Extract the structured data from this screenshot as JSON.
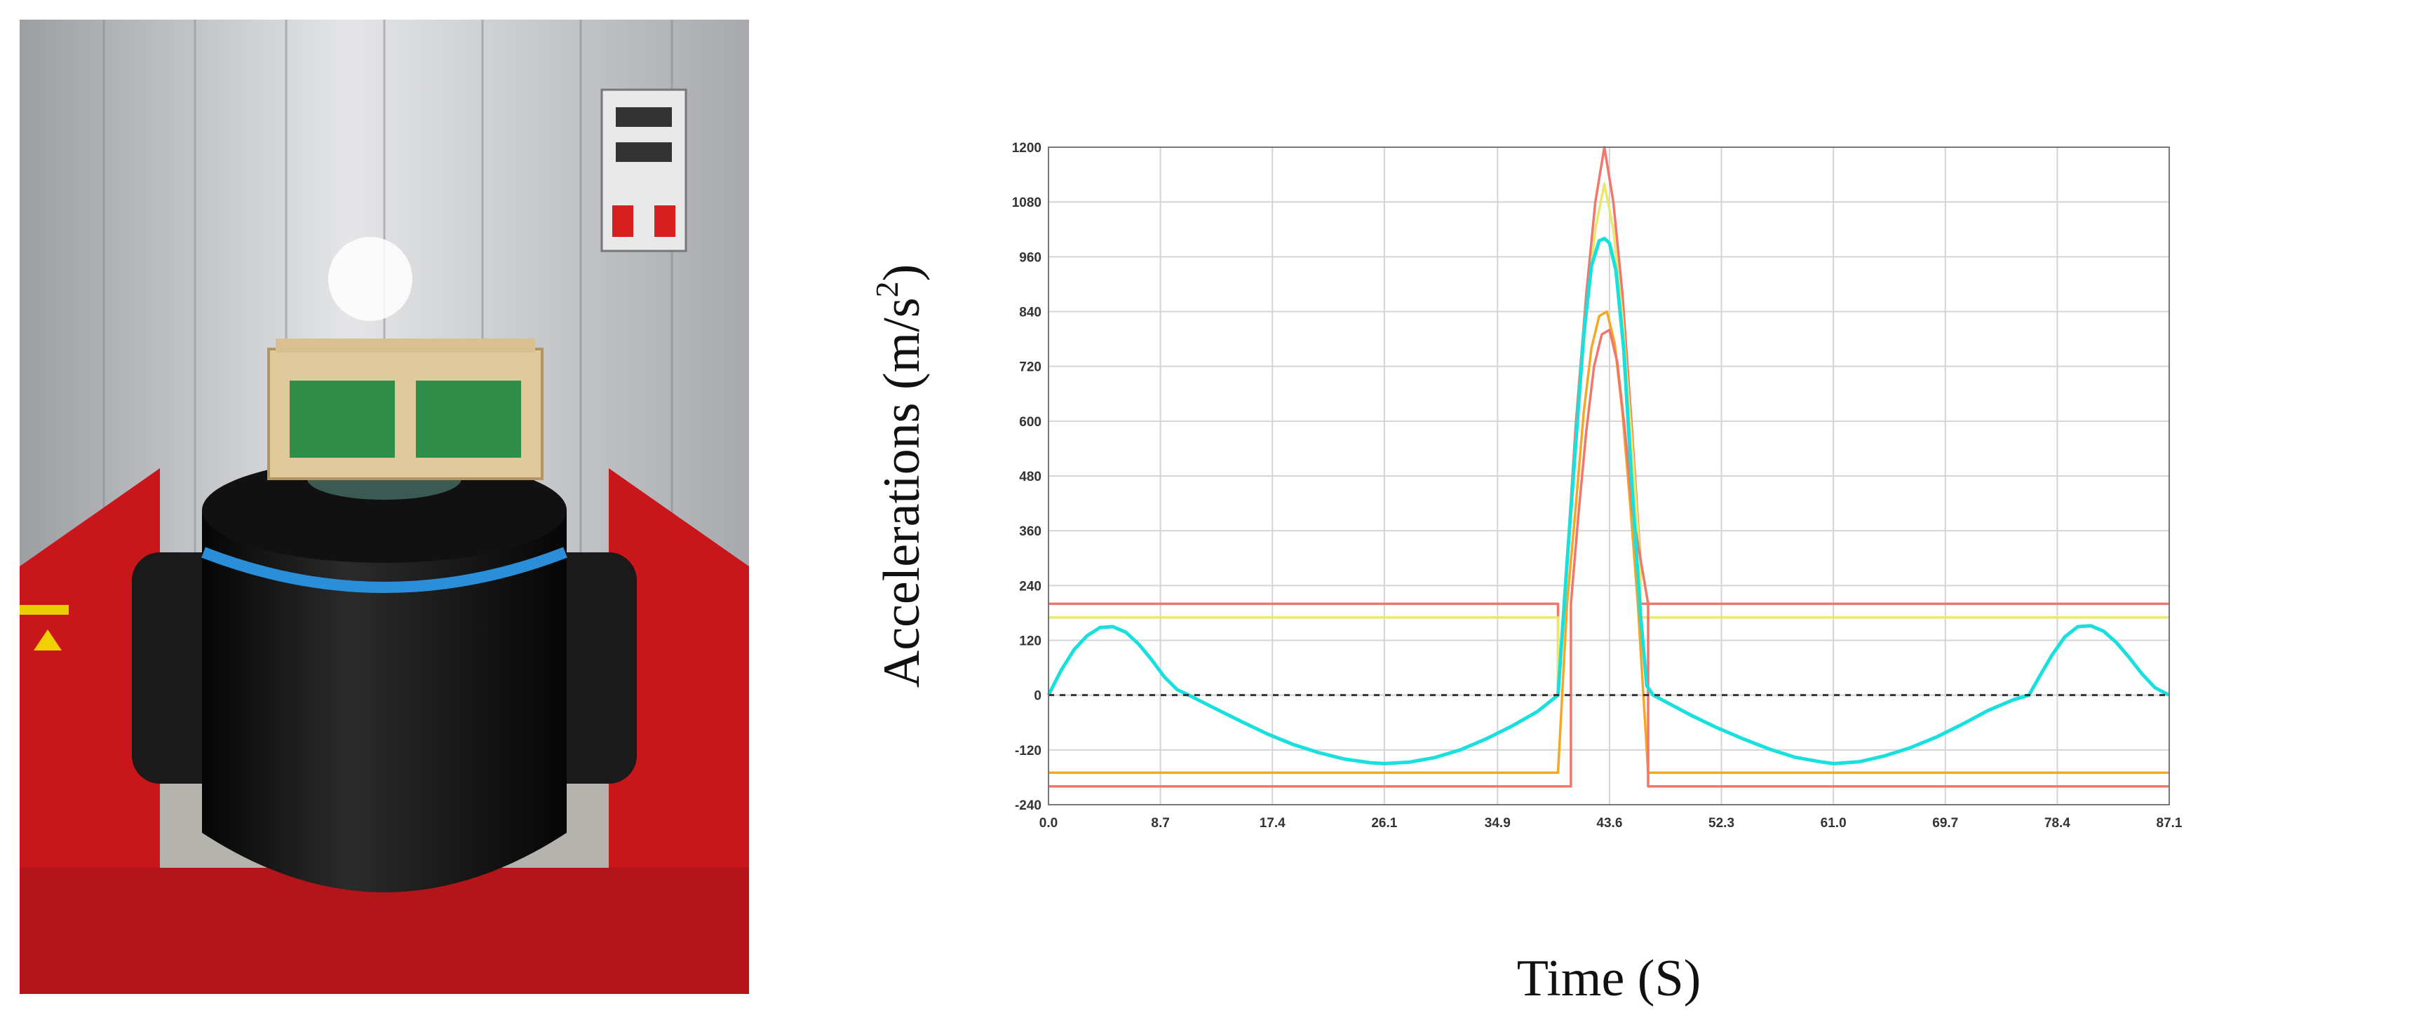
{
  "photo": {
    "panel_left": "#c9161a",
    "panel_right": "#c9161a",
    "shaker_body": "#141414",
    "band": "#2a8fd8",
    "wall": "#c8c9cb",
    "fixture": "#e0c99a",
    "pcb": "#2f8f4a"
  },
  "chart_data": {
    "type": "line",
    "xlabel": "Time (S)",
    "ylabel_main": "Accelerations (m/s",
    "ylabel_sup": "2",
    "ylabel_tail": ")",
    "xlim": [
      0,
      87.1
    ],
    "ylim": [
      -240,
      1200
    ],
    "grid": true,
    "xticks": [
      "0.0",
      "8.7",
      "17.4",
      "26.1",
      "34.9",
      "43.6",
      "52.3",
      "61.0",
      "69.7",
      "78.4",
      "87.1"
    ],
    "xtick_values": [
      0,
      8.7,
      17.4,
      26.1,
      34.9,
      43.6,
      52.3,
      61.0,
      69.7,
      78.4,
      87.1
    ],
    "yticks": [
      "-240",
      "-120",
      "0",
      "120",
      "240",
      "360",
      "480",
      "600",
      "720",
      "840",
      "960",
      "1080",
      "1200"
    ],
    "ytick_values": [
      -240,
      -120,
      0,
      120,
      240,
      360,
      480,
      600,
      720,
      840,
      960,
      1080,
      1200
    ],
    "colors": {
      "outer": "#f2766a",
      "inner": "#e8e86a",
      "upper_yellow": "#f5a623",
      "signal": "#19e0dc",
      "zero": "#333333"
    },
    "series": [
      {
        "role": "outer-tolerance-upper",
        "x": [
          0,
          39.6,
          39.6,
          40.3,
          41.0,
          41.8,
          42.5,
          43.2,
          43.9,
          44.6,
          45.3,
          46.0,
          46.0,
          87.1
        ],
        "y": [
          200,
          200,
          0,
          300,
          600,
          880,
          1080,
          1200,
          1080,
          880,
          600,
          300,
          200,
          200
        ]
      },
      {
        "role": "inner-tolerance-upper",
        "x": [
          0,
          39.6,
          39.6,
          40.3,
          41.0,
          41.8,
          42.5,
          43.2,
          43.9,
          44.6,
          45.3,
          46.0,
          46.0,
          87.1
        ],
        "y": [
          170,
          170,
          0,
          290,
          570,
          830,
          1020,
          1120,
          1020,
          830,
          570,
          290,
          170,
          170
        ]
      },
      {
        "role": "inner-tolerance-lower",
        "x": [
          0,
          39.6,
          40.3,
          41.0,
          41.6,
          42.2,
          42.8,
          43.4,
          44.0,
          44.6,
          45.2,
          45.8,
          46.6,
          87.1
        ],
        "y": [
          -170,
          -170,
          200,
          420,
          620,
          760,
          830,
          840,
          770,
          620,
          420,
          200,
          -170,
          -170
        ]
      },
      {
        "role": "outer-tolerance-lower",
        "x": [
          0,
          40.6,
          40.6,
          41.2,
          41.8,
          42.4,
          43.0,
          43.6,
          44.2,
          44.8,
          45.4,
          46.6,
          46.6,
          87.1
        ],
        "y": [
          -200,
          -200,
          200,
          400,
          580,
          720,
          790,
          800,
          730,
          580,
          400,
          200,
          -200,
          -200
        ]
      },
      {
        "role": "measured-signal",
        "x": [
          0,
          1,
          2,
          3,
          4,
          5,
          6,
          7,
          8,
          9,
          10,
          10.9,
          13,
          15,
          17,
          19,
          21,
          23,
          25,
          26.1,
          28,
          30,
          32,
          34,
          36,
          38,
          39.6,
          40.3,
          41.0,
          41.6,
          42.2,
          42.8,
          43.2,
          43.6,
          44.1,
          44.7,
          45.3,
          46.0,
          46.5,
          47.0,
          48,
          50,
          52,
          54,
          56,
          58,
          60,
          61.0,
          63,
          65,
          67,
          69,
          71,
          73,
          75,
          76.2,
          77,
          78,
          79,
          80,
          81,
          82,
          83,
          84,
          85,
          86,
          87.1
        ],
        "y": [
          0,
          55,
          100,
          130,
          148,
          150,
          138,
          112,
          78,
          40,
          12,
          0,
          -30,
          -58,
          -85,
          -108,
          -126,
          -140,
          -148,
          -150,
          -147,
          -137,
          -120,
          -96,
          -68,
          -36,
          0,
          290,
          560,
          790,
          940,
          995,
          1000,
          990,
          930,
          760,
          480,
          180,
          20,
          0,
          -15,
          -45,
          -72,
          -96,
          -118,
          -136,
          -146,
          -150,
          -146,
          -133,
          -115,
          -92,
          -64,
          -34,
          -10,
          0,
          40,
          88,
          128,
          150,
          152,
          140,
          115,
          82,
          46,
          16,
          0
        ]
      }
    ]
  }
}
